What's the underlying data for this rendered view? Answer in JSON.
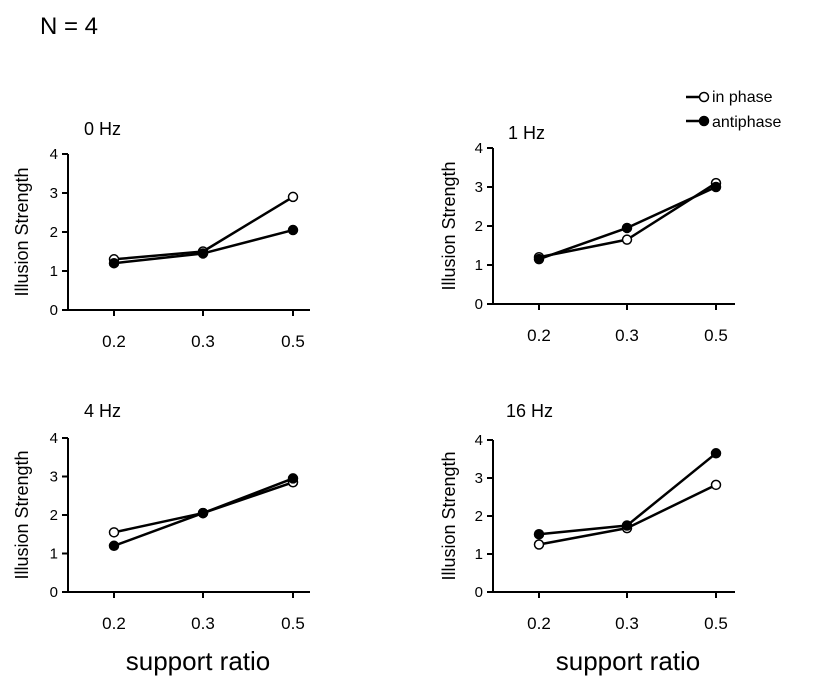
{
  "figure_title": "N = 4",
  "legend": {
    "entries": [
      {
        "label": "in phase",
        "marker": "open-circle"
      },
      {
        "label": "antiphase",
        "marker": "filled-circle"
      }
    ],
    "placement": "top-right"
  },
  "colors": {
    "line": "#000000",
    "open_marker_fill": "#ffffff",
    "filled_marker_fill": "#000000",
    "background": "#ffffff"
  },
  "chart_data": [
    {
      "type": "line",
      "title": "0 Hz",
      "xlabel": "",
      "ylabel": "Illusion Strength",
      "categories": [
        "0.2",
        "0.3",
        "0.5"
      ],
      "ylim": [
        0,
        4
      ],
      "yticks": [
        0,
        1,
        2,
        3,
        4
      ],
      "grid": false,
      "series": [
        {
          "name": "in phase",
          "values": [
            1.3,
            1.5,
            2.9
          ]
        },
        {
          "name": "antiphase",
          "values": [
            1.2,
            1.45,
            2.05
          ]
        }
      ]
    },
    {
      "type": "line",
      "title": "1 Hz",
      "xlabel": "",
      "ylabel": "Illusion Strength",
      "categories": [
        "0.2",
        "0.3",
        "0.5"
      ],
      "ylim": [
        0,
        4
      ],
      "yticks": [
        0,
        1,
        2,
        3,
        4
      ],
      "grid": false,
      "series": [
        {
          "name": "in phase",
          "values": [
            1.2,
            1.65,
            3.1
          ]
        },
        {
          "name": "antiphase",
          "values": [
            1.15,
            1.95,
            3.0
          ]
        }
      ]
    },
    {
      "type": "line",
      "title": "4 Hz",
      "xlabel": "support ratio",
      "ylabel": "Illusion Strength",
      "categories": [
        "0.2",
        "0.3",
        "0.5"
      ],
      "ylim": [
        0,
        4
      ],
      "yticks": [
        0,
        1,
        2,
        3,
        4
      ],
      "grid": false,
      "series": [
        {
          "name": "in phase",
          "values": [
            1.55,
            2.05,
            2.85
          ]
        },
        {
          "name": "antiphase",
          "values": [
            1.2,
            2.05,
            2.95
          ]
        }
      ]
    },
    {
      "type": "line",
      "title": "16 Hz",
      "xlabel": "support ratio",
      "ylabel": "Illusion Strength",
      "categories": [
        "0.2",
        "0.3",
        "0.5"
      ],
      "ylim": [
        0,
        4
      ],
      "yticks": [
        0,
        1,
        2,
        3,
        4
      ],
      "grid": false,
      "series": [
        {
          "name": "in phase",
          "values": [
            1.25,
            1.68,
            2.82
          ]
        },
        {
          "name": "antiphase",
          "values": [
            1.52,
            1.75,
            3.65
          ]
        }
      ]
    }
  ]
}
